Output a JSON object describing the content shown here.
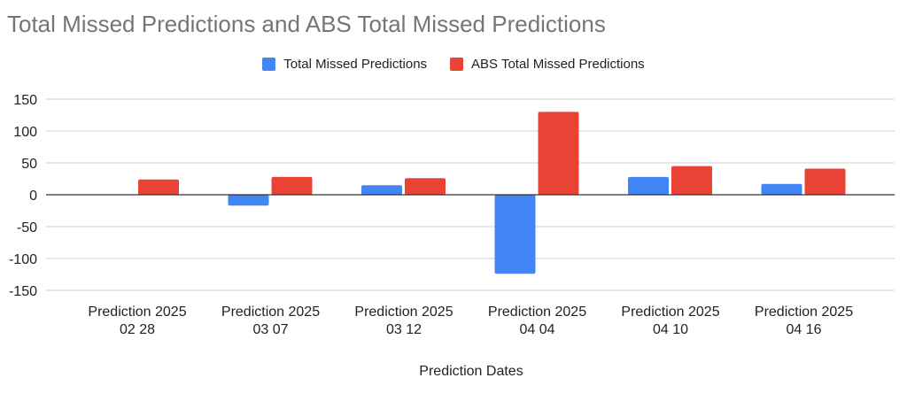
{
  "chart_data": {
    "type": "bar",
    "title": "Total Missed Predictions and ABS Total Missed Predictions",
    "xlabel": "Prediction Dates",
    "ylabel": "",
    "ylim": [
      -150,
      150
    ],
    "yticks": [
      150,
      100,
      50,
      0,
      -50,
      -100,
      -150
    ],
    "grid": true,
    "legend_position": "top",
    "categories": [
      [
        "Prediction 2025",
        "02 28"
      ],
      [
        "Prediction 2025",
        "03 07"
      ],
      [
        "Prediction 2025",
        "03 12"
      ],
      [
        "Prediction 2025",
        "04 04"
      ],
      [
        "Prediction 2025",
        "04 10"
      ],
      [
        "Prediction 2025",
        "04 16"
      ]
    ],
    "series": [
      {
        "name": "Total Missed Predictions",
        "color": "#4285f4",
        "values": [
          0,
          -17,
          15,
          -124,
          28,
          17
        ]
      },
      {
        "name": "ABS Total Missed Predictions",
        "color": "#ea4335",
        "values": [
          24,
          28,
          26,
          130,
          45,
          41
        ]
      }
    ]
  }
}
